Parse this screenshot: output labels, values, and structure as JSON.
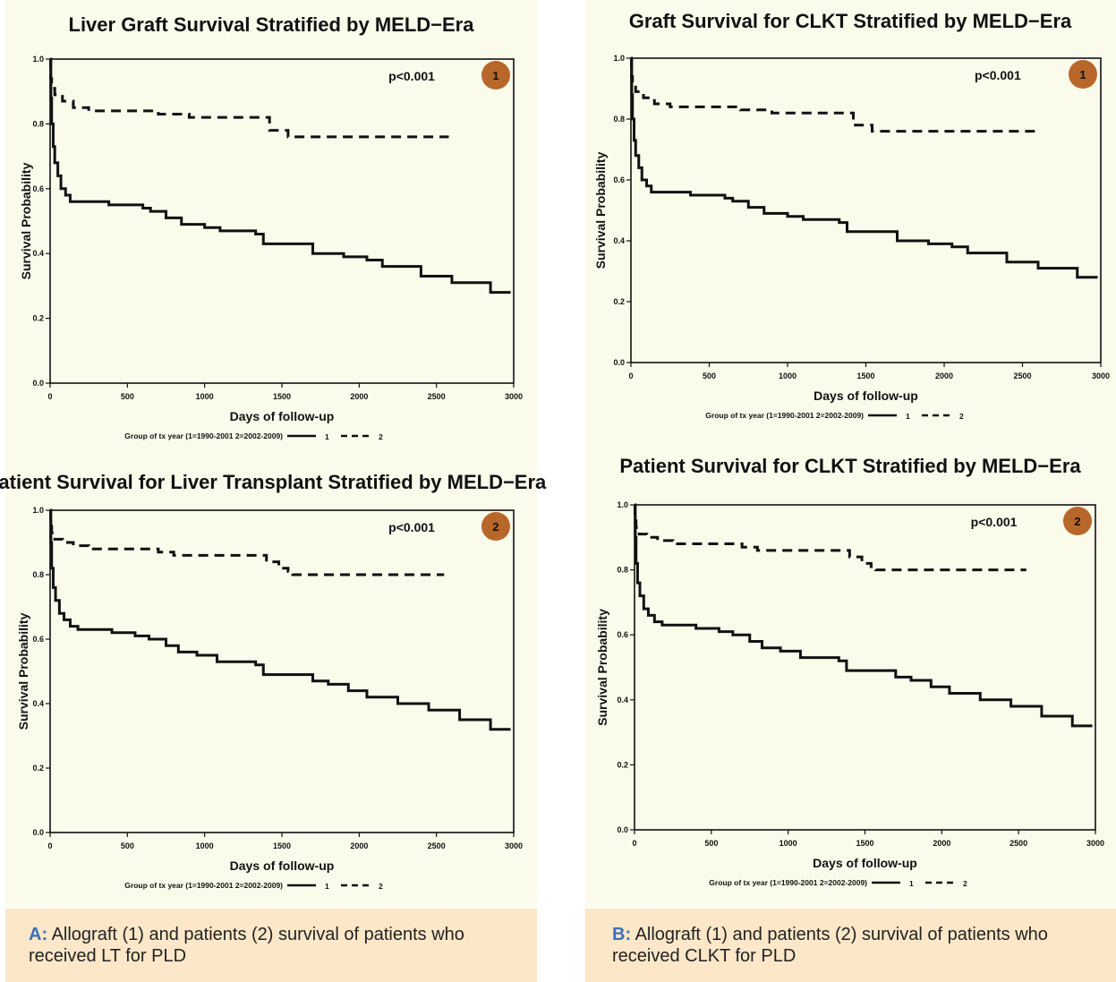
{
  "captions": {
    "a_letter": "A:",
    "a_text": " Allograft (1) and patients (2) survival of patients who received LT for PLD",
    "b_letter": "B:",
    "b_text": " Allograft (1) and patients (2) survival of patients who received CLKT for PLD"
  },
  "colors": {
    "panel_bg": "#fbfbec",
    "caption_bg": "#fce7c8",
    "caption_letter": "#3a6fb7",
    "badge": "#b8672a",
    "line": "#111111"
  },
  "chart_data": [
    {
      "type": "line",
      "title": "Liver Graft Survival Stratified by MELD−Era",
      "xlabel": "Days of follow-up",
      "ylabel": "Survival Probability",
      "pvalue": "p<0.001",
      "badge": "1",
      "xlim": [
        0,
        3000
      ],
      "ylim": [
        0,
        1.0
      ],
      "xticks": [
        "0",
        "500",
        "1000",
        "1500",
        "2000",
        "2500",
        "3000"
      ],
      "yticks": [
        "0.0",
        "0.2",
        "0.4",
        "0.6",
        "0.8",
        "1.0"
      ],
      "legend_title": "Group of tx year (1=1990-2001  2=2002-2009)",
      "grid": false,
      "legend": "bottom",
      "series": [
        {
          "name": "1",
          "style": "solid",
          "x": [
            0,
            5,
            10,
            20,
            30,
            50,
            70,
            100,
            130,
            180,
            380,
            600,
            650,
            750,
            850,
            1000,
            1100,
            1320,
            1330,
            1380,
            1530,
            1700,
            1900,
            2050,
            2150,
            2400,
            2600,
            2850,
            2980
          ],
          "y": [
            1.0,
            0.88,
            0.8,
            0.73,
            0.68,
            0.64,
            0.6,
            0.58,
            0.56,
            0.56,
            0.55,
            0.54,
            0.53,
            0.51,
            0.49,
            0.48,
            0.47,
            0.47,
            0.46,
            0.43,
            0.43,
            0.4,
            0.39,
            0.38,
            0.36,
            0.33,
            0.31,
            0.28,
            0.28
          ]
        },
        {
          "name": "2",
          "style": "dashed",
          "x": [
            0,
            3,
            10,
            30,
            80,
            150,
            250,
            500,
            700,
            900,
            1280,
            1420,
            1540,
            2580
          ],
          "y": [
            1.0,
            0.94,
            0.91,
            0.89,
            0.87,
            0.85,
            0.84,
            0.84,
            0.83,
            0.82,
            0.82,
            0.78,
            0.76,
            0.76
          ]
        }
      ]
    },
    {
      "type": "line",
      "title": "Graft Survival for CLKT Stratified by MELD−Era",
      "xlabel": "Days of follow-up",
      "ylabel": "Survival Probability",
      "pvalue": "p<0.001",
      "badge": "1",
      "xlim": [
        0,
        3000
      ],
      "ylim": [
        0,
        1.0
      ],
      "xticks": [
        "0",
        "500",
        "1000",
        "1500",
        "2000",
        "2500",
        "3000"
      ],
      "yticks": [
        "0.0",
        "0.2",
        "0.4",
        "0.6",
        "0.8",
        "1.0"
      ],
      "legend_title": "Group of tx year (1=1990-2001  2=2002-2009)",
      "grid": false,
      "legend": "bottom",
      "series": [
        {
          "name": "1",
          "style": "solid",
          "x": [
            0,
            5,
            10,
            20,
            30,
            50,
            70,
            100,
            130,
            180,
            380,
            600,
            650,
            750,
            850,
            1000,
            1100,
            1320,
            1330,
            1380,
            1530,
            1700,
            1900,
            2050,
            2150,
            2400,
            2600,
            2850,
            2980
          ],
          "y": [
            1.0,
            0.88,
            0.8,
            0.73,
            0.68,
            0.64,
            0.6,
            0.58,
            0.56,
            0.56,
            0.55,
            0.54,
            0.53,
            0.51,
            0.49,
            0.48,
            0.47,
            0.47,
            0.46,
            0.43,
            0.43,
            0.4,
            0.39,
            0.38,
            0.36,
            0.33,
            0.31,
            0.28,
            0.28
          ]
        },
        {
          "name": "2",
          "style": "dashed",
          "x": [
            0,
            3,
            10,
            30,
            80,
            150,
            250,
            500,
            700,
            900,
            1280,
            1420,
            1540,
            2580
          ],
          "y": [
            1.0,
            0.94,
            0.91,
            0.89,
            0.87,
            0.85,
            0.84,
            0.84,
            0.83,
            0.82,
            0.82,
            0.78,
            0.76,
            0.76
          ]
        }
      ]
    },
    {
      "type": "line",
      "title": "Patient Survival for Liver Transplant Stratified by MELD−Era",
      "xlabel": "Days of follow-up",
      "ylabel": "Survival Probability",
      "pvalue": "p<0.001",
      "badge": "2",
      "xlim": [
        0,
        3000
      ],
      "ylim": [
        0,
        1.0
      ],
      "xticks": [
        "0",
        "500",
        "1000",
        "1500",
        "2000",
        "2500",
        "3000"
      ],
      "yticks": [
        "0.0",
        "0.2",
        "0.4",
        "0.6",
        "0.8",
        "1.0"
      ],
      "legend_title": "Group of tx year (1=1990-2001  2=2002-2009)",
      "grid": false,
      "legend": "bottom",
      "series": [
        {
          "name": "1",
          "style": "solid",
          "x": [
            0,
            5,
            10,
            20,
            35,
            60,
            90,
            130,
            180,
            400,
            550,
            640,
            750,
            830,
            950,
            1080,
            1320,
            1330,
            1380,
            1530,
            1700,
            1800,
            1930,
            2050,
            2250,
            2450,
            2650,
            2850,
            2980
          ],
          "y": [
            1.0,
            0.9,
            0.82,
            0.76,
            0.72,
            0.68,
            0.66,
            0.64,
            0.63,
            0.62,
            0.61,
            0.6,
            0.58,
            0.56,
            0.55,
            0.53,
            0.53,
            0.52,
            0.49,
            0.49,
            0.47,
            0.46,
            0.44,
            0.42,
            0.4,
            0.38,
            0.35,
            0.32,
            0.32
          ]
        },
        {
          "name": "2",
          "style": "dashed",
          "x": [
            0,
            3,
            10,
            30,
            80,
            150,
            250,
            500,
            700,
            800,
            1400,
            1480,
            1540,
            1570,
            2550
          ],
          "y": [
            1.0,
            0.96,
            0.93,
            0.91,
            0.9,
            0.89,
            0.88,
            0.88,
            0.87,
            0.86,
            0.84,
            0.82,
            0.81,
            0.8,
            0.8
          ]
        }
      ]
    },
    {
      "type": "line",
      "title": "Patient Survival for CLKT Stratified by MELD−Era",
      "xlabel": "Days of follow-up",
      "ylabel": "Survival Probability",
      "pvalue": "p<0.001",
      "badge": "2",
      "xlim": [
        0,
        3000
      ],
      "ylim": [
        0,
        1.0
      ],
      "xticks": [
        "0",
        "500",
        "1000",
        "1500",
        "2000",
        "2500",
        "3000"
      ],
      "yticks": [
        "0.0",
        "0.2",
        "0.4",
        "0.6",
        "0.8",
        "1.0"
      ],
      "legend_title": "Group of tx year (1=1990-2001  2=2002-2009)",
      "grid": false,
      "legend": "bottom",
      "series": [
        {
          "name": "1",
          "style": "solid",
          "x": [
            0,
            5,
            10,
            20,
            35,
            60,
            90,
            130,
            180,
            400,
            550,
            640,
            750,
            830,
            950,
            1080,
            1320,
            1330,
            1380,
            1530,
            1700,
            1800,
            1930,
            2050,
            2250,
            2450,
            2650,
            2850,
            2980
          ],
          "y": [
            1.0,
            0.9,
            0.82,
            0.76,
            0.72,
            0.68,
            0.66,
            0.64,
            0.63,
            0.62,
            0.61,
            0.6,
            0.58,
            0.56,
            0.55,
            0.53,
            0.53,
            0.52,
            0.49,
            0.49,
            0.47,
            0.46,
            0.44,
            0.42,
            0.4,
            0.38,
            0.35,
            0.32,
            0.32
          ]
        },
        {
          "name": "2",
          "style": "dashed",
          "x": [
            0,
            3,
            10,
            30,
            80,
            150,
            250,
            500,
            700,
            800,
            1400,
            1480,
            1540,
            1570,
            2550
          ],
          "y": [
            1.0,
            0.96,
            0.93,
            0.91,
            0.9,
            0.89,
            0.88,
            0.88,
            0.87,
            0.86,
            0.84,
            0.82,
            0.81,
            0.8,
            0.8
          ]
        }
      ]
    }
  ]
}
